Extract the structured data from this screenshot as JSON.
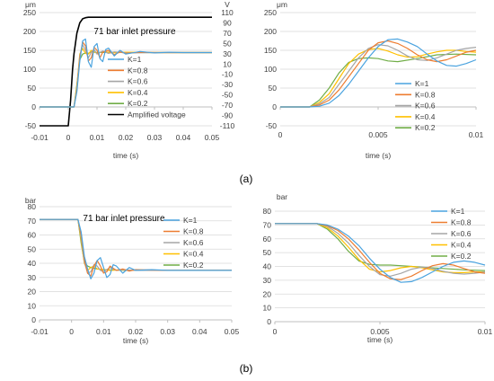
{
  "labels": {
    "a": "(a)",
    "b": "(b)"
  },
  "colors": {
    "K=1": "#4aa3df",
    "K=0.8": "#ed7d31",
    "K=0.6": "#a5a5a5",
    "K=0.4": "#ffc000",
    "K=0.2": "#70ad47",
    "Amplified voltage": "#000000",
    "grid": "#d9d9d9",
    "axis": "#bfbfbf",
    "text": "#404040"
  },
  "chart_data": [
    {
      "type": "line",
      "id": "a-left",
      "title": "71 bar inlet pressure",
      "xlabel": "time (s)",
      "ylabel": "μm",
      "y2label": "V",
      "xlim": [
        -0.01,
        0.05
      ],
      "ylim": [
        -50,
        250
      ],
      "y2lim": [
        -110,
        110
      ],
      "xticks": [
        "-0.01",
        "0",
        "0.01",
        "0.02",
        "0.03",
        "0.04",
        "0.05"
      ],
      "yticks": [
        "-50",
        "0",
        "50",
        "100",
        "150",
        "200",
        "250"
      ],
      "y2ticks": [
        "-110",
        "-90",
        "-70",
        "-50",
        "-30",
        "-10",
        "10",
        "30",
        "50",
        "70",
        "90",
        "110"
      ],
      "grid": true,
      "legend": "right",
      "series": [
        {
          "name": "K=1",
          "x": [
            -0.01,
            0,
            0.002,
            0.003,
            0.004,
            0.005,
            0.006,
            0.007,
            0.008,
            0.009,
            0.01,
            0.011,
            0.012,
            0.013,
            0.014,
            0.016,
            0.018,
            0.02,
            0.025,
            0.03,
            0.035,
            0.04,
            0.045,
            0.05
          ],
          "values": [
            0,
            0,
            0,
            40,
            120,
            175,
            180,
            120,
            105,
            160,
            168,
            128,
            120,
            152,
            156,
            135,
            150,
            140,
            147,
            143,
            145,
            144,
            144,
            144
          ]
        },
        {
          "name": "K=0.8",
          "x": [
            -0.01,
            0,
            0.002,
            0.003,
            0.004,
            0.005,
            0.006,
            0.007,
            0.008,
            0.009,
            0.01,
            0.011,
            0.012,
            0.014,
            0.016,
            0.018,
            0.02,
            0.025,
            0.03,
            0.04,
            0.05
          ],
          "values": [
            0,
            0,
            0,
            45,
            130,
            172,
            162,
            122,
            130,
            158,
            150,
            130,
            145,
            150,
            138,
            146,
            142,
            145,
            144,
            144,
            144
          ]
        },
        {
          "name": "K=0.6",
          "x": [
            -0.01,
            0,
            0.002,
            0.003,
            0.004,
            0.005,
            0.006,
            0.007,
            0.008,
            0.009,
            0.01,
            0.012,
            0.014,
            0.016,
            0.02,
            0.03,
            0.04,
            0.05
          ],
          "values": [
            0,
            0,
            0,
            50,
            135,
            165,
            150,
            130,
            145,
            152,
            140,
            148,
            142,
            146,
            143,
            144,
            144,
            144
          ]
        },
        {
          "name": "K=0.4",
          "x": [
            -0.01,
            0,
            0.002,
            0.003,
            0.004,
            0.005,
            0.006,
            0.007,
            0.008,
            0.01,
            0.012,
            0.015,
            0.02,
            0.03,
            0.04,
            0.05
          ],
          "values": [
            0,
            0,
            0,
            55,
            140,
            155,
            142,
            140,
            150,
            142,
            147,
            143,
            145,
            144,
            144,
            144
          ]
        },
        {
          "name": "K=0.2",
          "x": [
            -0.01,
            0,
            0.002,
            0.003,
            0.004,
            0.005,
            0.006,
            0.007,
            0.008,
            0.01,
            0.015,
            0.02,
            0.03,
            0.04,
            0.05
          ],
          "values": [
            0,
            0,
            0,
            60,
            125,
            140,
            143,
            142,
            146,
            144,
            145,
            144,
            144,
            144,
            144
          ]
        },
        {
          "name": "Amplified voltage",
          "axis": "y2",
          "x": [
            -0.01,
            0,
            0.0008,
            0.0015,
            0.002,
            0.003,
            0.004,
            0.005,
            0.006,
            0.007,
            0.008,
            0.01,
            0.05
          ],
          "values": [
            -110,
            -110,
            -60,
            0,
            30,
            70,
            90,
            98,
            100,
            101,
            101,
            101,
            101
          ]
        }
      ]
    },
    {
      "type": "line",
      "id": "a-right",
      "xlabel": "time (s)",
      "ylabel": "μm",
      "xlim": [
        0,
        0.01
      ],
      "ylim": [
        -50,
        250
      ],
      "xticks": [
        "0",
        "0.005",
        "0.01"
      ],
      "yticks": [
        "-50",
        "0",
        "50",
        "100",
        "150",
        "200",
        "250"
      ],
      "grid": true,
      "legend": "right",
      "series": [
        {
          "name": "K=1",
          "x": [
            0,
            0.0015,
            0.002,
            0.0025,
            0.003,
            0.0035,
            0.004,
            0.0045,
            0.005,
            0.0055,
            0.006,
            0.0065,
            0.007,
            0.0075,
            0.008,
            0.0085,
            0.009,
            0.0095,
            0.01
          ],
          "values": [
            0,
            0,
            2,
            10,
            30,
            60,
            95,
            130,
            160,
            178,
            180,
            172,
            160,
            140,
            122,
            110,
            108,
            115,
            125
          ]
        },
        {
          "name": "K=0.8",
          "x": [
            0,
            0.0015,
            0.002,
            0.0025,
            0.003,
            0.0035,
            0.004,
            0.0045,
            0.005,
            0.0055,
            0.006,
            0.0065,
            0.007,
            0.0075,
            0.008,
            0.0085,
            0.009,
            0.0095,
            0.01
          ],
          "values": [
            0,
            0,
            5,
            18,
            45,
            80,
            115,
            150,
            170,
            175,
            168,
            155,
            138,
            125,
            120,
            125,
            135,
            145,
            150
          ]
        },
        {
          "name": "K=0.6",
          "x": [
            0,
            0.0015,
            0.002,
            0.0025,
            0.003,
            0.0035,
            0.004,
            0.0045,
            0.005,
            0.0055,
            0.006,
            0.0065,
            0.007,
            0.0075,
            0.008,
            0.0085,
            0.009,
            0.0095,
            0.01
          ],
          "values": [
            0,
            0,
            8,
            25,
            60,
            95,
            130,
            155,
            165,
            162,
            150,
            135,
            125,
            123,
            130,
            140,
            150,
            155,
            158
          ]
        },
        {
          "name": "K=0.4",
          "x": [
            0,
            0.0015,
            0.002,
            0.0025,
            0.003,
            0.0035,
            0.004,
            0.0045,
            0.005,
            0.0055,
            0.006,
            0.0065,
            0.007,
            0.0075,
            0.008,
            0.0085,
            0.009,
            0.0095,
            0.01
          ],
          "values": [
            0,
            0,
            12,
            35,
            75,
            115,
            140,
            152,
            155,
            148,
            138,
            132,
            133,
            140,
            146,
            150,
            150,
            147,
            145
          ]
        },
        {
          "name": "K=0.2",
          "x": [
            0,
            0.0015,
            0.002,
            0.0025,
            0.003,
            0.0035,
            0.004,
            0.0045,
            0.005,
            0.0055,
            0.006,
            0.007,
            0.008,
            0.009,
            0.01
          ],
          "values": [
            0,
            0,
            18,
            50,
            90,
            118,
            128,
            130,
            128,
            122,
            120,
            128,
            138,
            140,
            138
          ]
        }
      ]
    },
    {
      "type": "line",
      "id": "b-left",
      "title": "71 bar inlet pressure",
      "xlabel": "time (s)",
      "ylabel": "bar",
      "xlim": [
        -0.01,
        0.05
      ],
      "ylim": [
        0,
        80
      ],
      "xticks": [
        "-0.01",
        "0",
        "0.01",
        "0.02",
        "0.03",
        "0.04",
        "0.05"
      ],
      "yticks": [
        "0",
        "10",
        "20",
        "30",
        "40",
        "50",
        "60",
        "70",
        "80"
      ],
      "grid": true,
      "legend": "right",
      "series": [
        {
          "name": "K=1",
          "x": [
            -0.01,
            0,
            0.002,
            0.003,
            0.004,
            0.005,
            0.006,
            0.007,
            0.008,
            0.009,
            0.01,
            0.011,
            0.012,
            0.013,
            0.014,
            0.016,
            0.018,
            0.02,
            0.025,
            0.03,
            0.04,
            0.05
          ],
          "values": [
            71,
            71,
            71,
            62,
            45,
            36,
            29,
            33,
            42,
            44,
            37,
            30,
            32,
            39,
            38,
            33,
            37,
            35,
            35.5,
            35,
            35,
            35
          ]
        },
        {
          "name": "K=0.8",
          "x": [
            -0.01,
            0,
            0.002,
            0.003,
            0.004,
            0.005,
            0.006,
            0.007,
            0.008,
            0.009,
            0.01,
            0.011,
            0.012,
            0.014,
            0.016,
            0.018,
            0.02,
            0.03,
            0.04,
            0.05
          ],
          "values": [
            71,
            71,
            71,
            60,
            43,
            33,
            31,
            38,
            42,
            38,
            33,
            34,
            38,
            35,
            36,
            34.5,
            35.5,
            35,
            35,
            35
          ]
        },
        {
          "name": "K=0.6",
          "x": [
            -0.01,
            0,
            0.002,
            0.003,
            0.004,
            0.005,
            0.006,
            0.007,
            0.008,
            0.009,
            0.01,
            0.012,
            0.014,
            0.016,
            0.02,
            0.03,
            0.05
          ],
          "values": [
            71,
            71,
            71,
            58,
            41,
            33,
            34,
            39,
            38,
            35,
            34,
            37,
            35,
            35.5,
            35,
            35,
            35
          ]
        },
        {
          "name": "K=0.4",
          "x": [
            -0.01,
            0,
            0.002,
            0.003,
            0.004,
            0.005,
            0.006,
            0.007,
            0.008,
            0.01,
            0.012,
            0.015,
            0.02,
            0.03,
            0.05
          ],
          "values": [
            71,
            71,
            71,
            56,
            40,
            35,
            37,
            38,
            36,
            35.5,
            35,
            35.3,
            35,
            35,
            35
          ]
        },
        {
          "name": "K=0.2",
          "x": [
            -0.01,
            0,
            0.002,
            0.003,
            0.004,
            0.005,
            0.006,
            0.007,
            0.008,
            0.01,
            0.015,
            0.02,
            0.03,
            0.05
          ],
          "values": [
            71,
            71,
            71,
            54,
            41,
            38,
            37,
            36.5,
            36,
            35.5,
            35.2,
            35,
            35,
            35
          ]
        }
      ]
    },
    {
      "type": "line",
      "id": "b-right",
      "xlabel": "time (s)",
      "ylabel": "bar",
      "xlim": [
        0,
        0.01
      ],
      "ylim": [
        0,
        80
      ],
      "xticks": [
        "0",
        "0.005",
        "0.01"
      ],
      "yticks": [
        "0",
        "10",
        "20",
        "30",
        "40",
        "50",
        "60",
        "70",
        "80"
      ],
      "grid": true,
      "legend": "right",
      "series": [
        {
          "name": "K=1",
          "x": [
            0,
            0.002,
            0.0025,
            0.003,
            0.0035,
            0.004,
            0.0045,
            0.005,
            0.0055,
            0.006,
            0.0065,
            0.007,
            0.0075,
            0.008,
            0.0085,
            0.009,
            0.0095,
            0.01
          ],
          "values": [
            71,
            71,
            70,
            67,
            62,
            55,
            46,
            38,
            32,
            28.5,
            29,
            32,
            36,
            40,
            43,
            44,
            43,
            41
          ]
        },
        {
          "name": "K=0.8",
          "x": [
            0,
            0.002,
            0.0025,
            0.003,
            0.0035,
            0.004,
            0.0045,
            0.005,
            0.0055,
            0.006,
            0.0065,
            0.007,
            0.0075,
            0.008,
            0.0085,
            0.009,
            0.0095,
            0.01
          ],
          "values": [
            71,
            71,
            69.5,
            66,
            60,
            52,
            43,
            35,
            31,
            30.5,
            33,
            37,
            40.5,
            42,
            41,
            38.5,
            36,
            35
          ]
        },
        {
          "name": "K=0.6",
          "x": [
            0,
            0.002,
            0.0025,
            0.003,
            0.0035,
            0.004,
            0.0045,
            0.005,
            0.0055,
            0.006,
            0.0065,
            0.007,
            0.0075,
            0.008,
            0.0085,
            0.009,
            0.0095,
            0.01
          ],
          "values": [
            71,
            71,
            69,
            64,
            57,
            48,
            40,
            34,
            33,
            35,
            38,
            39.5,
            38.5,
            36.5,
            35,
            34.5,
            35,
            36
          ]
        },
        {
          "name": "K=0.4",
          "x": [
            0,
            0.002,
            0.0025,
            0.003,
            0.0035,
            0.004,
            0.0045,
            0.005,
            0.0055,
            0.006,
            0.0065,
            0.007,
            0.0075,
            0.008,
            0.0085,
            0.009,
            0.0095,
            0.01
          ],
          "values": [
            71,
            71,
            68,
            62,
            54,
            45,
            38,
            36,
            37,
            39,
            40,
            39,
            37.5,
            36,
            35.5,
            35.5,
            36,
            36
          ]
        },
        {
          "name": "K=0.2",
          "x": [
            0,
            0.002,
            0.0025,
            0.003,
            0.0035,
            0.004,
            0.0045,
            0.005,
            0.0055,
            0.006,
            0.0065,
            0.007,
            0.008,
            0.009,
            0.01
          ],
          "values": [
            71,
            71,
            67,
            60,
            51,
            44,
            41.5,
            41,
            41,
            40.5,
            40,
            39.5,
            38.5,
            37.5,
            37
          ]
        }
      ]
    }
  ]
}
